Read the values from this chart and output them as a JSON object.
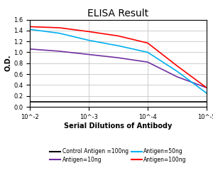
{
  "title": "ELISA Result",
  "xlabel": "Serial Dilutions of Antibody",
  "ylabel": "O.D.",
  "ylim": [
    0,
    1.6
  ],
  "yticks": [
    0,
    0.2,
    0.4,
    0.6,
    0.8,
    1.0,
    1.2,
    1.4,
    1.6
  ],
  "xtick_positions_log": [
    -2,
    -3,
    -4,
    -5
  ],
  "xtick_labels": [
    "10^-2",
    "10^-3",
    "10^-4",
    "10^-5"
  ],
  "lines": [
    {
      "label": "Control Antigen =100ng",
      "color": "#000000",
      "x_log": [
        -2,
        -2.5,
        -3,
        -3.5,
        -4,
        -4.5,
        -5
      ],
      "y": [
        0.09,
        0.09,
        0.09,
        0.09,
        0.09,
        0.09,
        0.09
      ]
    },
    {
      "label": "Antigen=10ng",
      "color": "#7030A0",
      "x_log": [
        -2,
        -2.5,
        -3,
        -3.5,
        -4,
        -4.5,
        -5
      ],
      "y": [
        1.06,
        1.02,
        0.96,
        0.9,
        0.82,
        0.55,
        0.35
      ]
    },
    {
      "label": "Antigen=50ng",
      "color": "#00B0F0",
      "x_log": [
        -2,
        -2.5,
        -3,
        -3.5,
        -4,
        -4.5,
        -5
      ],
      "y": [
        1.42,
        1.35,
        1.22,
        1.12,
        1.0,
        0.65,
        0.25
      ]
    },
    {
      "label": "Antigen=100ng",
      "color": "#FF0000",
      "x_log": [
        -2,
        -2.5,
        -3,
        -3.5,
        -4,
        -4.5,
        -5
      ],
      "y": [
        1.47,
        1.45,
        1.38,
        1.3,
        1.17,
        0.75,
        0.35
      ]
    }
  ],
  "legend_row1": [
    {
      "label": "Control Antigen =100ng",
      "color": "#000000"
    },
    {
      "label": "Antigen=10ng",
      "color": "#7030A0"
    }
  ],
  "legend_row2": [
    {
      "label": "Antigen=50ng",
      "color": "#00B0F0"
    },
    {
      "label": "Antigen=100ng",
      "color": "#FF0000"
    }
  ],
  "background_color": "#ffffff",
  "grid_color": "#bbbbbb",
  "title_fontsize": 10,
  "label_fontsize": 7,
  "tick_fontsize": 6,
  "legend_fontsize": 5.5
}
